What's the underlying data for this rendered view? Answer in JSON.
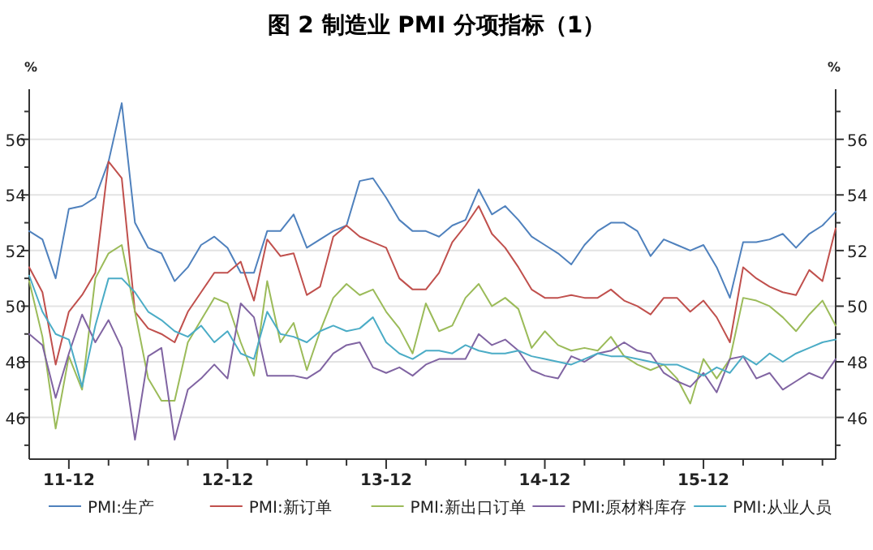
{
  "chart_data": {
    "type": "line",
    "title": "图 2  制造业 PMI 分项指标（1）",
    "ylabel": "%",
    "y2label": "%",
    "x": [
      "2011-09",
      "2011-10",
      "2011-11",
      "2011-12",
      "2012-01",
      "2012-02",
      "2012-03",
      "2012-04",
      "2012-05",
      "2012-06",
      "2012-07",
      "2012-08",
      "2012-09",
      "2012-10",
      "2012-11",
      "2012-12",
      "2013-01",
      "2013-02",
      "2013-03",
      "2013-04",
      "2013-05",
      "2013-06",
      "2013-07",
      "2013-08",
      "2013-09",
      "2013-10",
      "2013-11",
      "2013-12",
      "2014-01",
      "2014-02",
      "2014-03",
      "2014-04",
      "2014-05",
      "2014-06",
      "2014-07",
      "2014-08",
      "2014-09",
      "2014-10",
      "2014-11",
      "2014-12",
      "2015-01",
      "2015-02",
      "2015-03",
      "2015-04",
      "2015-05",
      "2015-06",
      "2015-07",
      "2015-08",
      "2015-09",
      "2015-10",
      "2015-11",
      "2015-12",
      "2016-01",
      "2016-02",
      "2016-03",
      "2016-04",
      "2016-05",
      "2016-06",
      "2016-07",
      "2016-08",
      "2016-09",
      "2016-10"
    ],
    "xlim": [
      "2011-09",
      "2016-10"
    ],
    "xticks": [
      {
        "value": "2011-12",
        "label": "11-12"
      },
      {
        "value": "2012-03",
        "label": null
      },
      {
        "value": "2012-06",
        "label": null
      },
      {
        "value": "2012-09",
        "label": null
      },
      {
        "value": "2012-12",
        "label": "12-12"
      },
      {
        "value": "2013-03",
        "label": null
      },
      {
        "value": "2013-06",
        "label": null
      },
      {
        "value": "2013-09",
        "label": null
      },
      {
        "value": "2013-12",
        "label": "13-12"
      },
      {
        "value": "2014-03",
        "label": null
      },
      {
        "value": "2014-06",
        "label": null
      },
      {
        "value": "2014-09",
        "label": null
      },
      {
        "value": "2014-12",
        "label": "14-12"
      },
      {
        "value": "2015-03",
        "label": null
      },
      {
        "value": "2015-06",
        "label": null
      },
      {
        "value": "2015-09",
        "label": null
      },
      {
        "value": "2015-12",
        "label": "15-12"
      },
      {
        "value": "2016-03",
        "label": null
      },
      {
        "value": "2016-06",
        "label": null
      },
      {
        "value": "2016-09",
        "label": null
      }
    ],
    "ylim": [
      44.5,
      57.8
    ],
    "yticks": [
      {
        "value": 45,
        "label": null
      },
      46,
      {
        "value": 47,
        "label": null
      },
      48,
      {
        "value": 49,
        "label": null
      },
      50,
      {
        "value": 51,
        "label": null
      },
      52,
      {
        "value": 53,
        "label": null
      },
      54,
      {
        "value": 55,
        "label": null
      },
      56,
      {
        "value": 57,
        "label": null
      }
    ],
    "y2lim": [
      44.5,
      57.8
    ],
    "y2ticks": [
      {
        "value": 45,
        "label": null
      },
      46,
      {
        "value": 47,
        "label": null
      },
      48,
      {
        "value": 49,
        "label": null
      },
      50,
      {
        "value": 51,
        "label": null
      },
      52,
      {
        "value": 53,
        "label": null
      },
      54,
      {
        "value": 55,
        "label": null
      },
      56,
      {
        "value": 57,
        "label": null
      }
    ],
    "grid": "y",
    "legend": "bottom",
    "series": [
      {
        "name": "PMI:生产",
        "color": "#4f81bd",
        "values": [
          52.7,
          52.4,
          51.0,
          53.5,
          53.6,
          53.9,
          55.2,
          57.3,
          53.0,
          52.1,
          51.9,
          50.9,
          51.4,
          52.2,
          52.5,
          52.1,
          51.2,
          51.2,
          52.7,
          52.7,
          53.3,
          52.1,
          52.4,
          52.7,
          52.9,
          54.5,
          54.6,
          53.9,
          53.1,
          52.7,
          52.7,
          52.5,
          52.9,
          53.1,
          54.2,
          53.3,
          53.6,
          53.1,
          52.5,
          52.2,
          51.9,
          51.5,
          52.2,
          52.7,
          53.0,
          53.0,
          52.7,
          51.8,
          52.4,
          52.2,
          52.0,
          52.2,
          51.4,
          50.3,
          52.3,
          52.3,
          52.4,
          52.6,
          52.1,
          52.6,
          52.9,
          53.4
        ]
      },
      {
        "name": "PMI:新订单",
        "color": "#c0504d",
        "values": [
          51.4,
          50.5,
          47.9,
          49.8,
          50.4,
          51.2,
          55.2,
          54.6,
          49.8,
          49.2,
          49.0,
          48.7,
          49.8,
          50.5,
          51.2,
          51.2,
          51.6,
          50.2,
          52.4,
          51.8,
          51.9,
          50.4,
          50.7,
          52.5,
          52.9,
          52.5,
          52.3,
          52.1,
          51.0,
          50.6,
          50.6,
          51.2,
          52.3,
          52.9,
          53.6,
          52.6,
          52.1,
          51.4,
          50.6,
          50.3,
          50.3,
          50.4,
          50.3,
          50.3,
          50.6,
          50.2,
          50.0,
          49.7,
          50.3,
          50.3,
          49.8,
          50.2,
          49.6,
          48.7,
          51.4,
          51.0,
          50.7,
          50.5,
          50.4,
          51.3,
          50.9,
          52.8
        ]
      },
      {
        "name": "PMI:新出口订单",
        "color": "#9bbb59",
        "values": [
          50.9,
          48.9,
          45.6,
          48.2,
          47.0,
          51.0,
          51.9,
          52.2,
          49.8,
          47.4,
          46.6,
          46.6,
          48.7,
          49.5,
          50.3,
          50.1,
          48.7,
          47.5,
          50.9,
          48.7,
          49.4,
          47.7,
          49.1,
          50.3,
          50.8,
          50.4,
          50.6,
          49.8,
          49.2,
          48.3,
          50.1,
          49.1,
          49.3,
          50.3,
          50.8,
          50.0,
          50.3,
          49.9,
          48.5,
          49.1,
          48.6,
          48.4,
          48.5,
          48.4,
          48.9,
          48.2,
          47.9,
          47.7,
          47.9,
          47.4,
          46.5,
          48.1,
          47.4,
          48.1,
          50.3,
          50.2,
          50.0,
          49.6,
          49.1,
          49.7,
          50.2,
          49.3
        ]
      },
      {
        "name": "PMI:原材料库存",
        "color": "#8064a2",
        "values": [
          49.0,
          48.6,
          46.7,
          48.3,
          49.7,
          48.7,
          49.5,
          48.5,
          45.2,
          48.2,
          48.5,
          45.2,
          47.0,
          47.4,
          47.9,
          47.4,
          50.1,
          49.6,
          47.5,
          47.5,
          47.5,
          47.4,
          47.7,
          48.3,
          48.6,
          48.7,
          47.8,
          47.6,
          47.8,
          47.5,
          47.9,
          48.1,
          48.1,
          48.1,
          49.0,
          48.6,
          48.8,
          48.4,
          47.7,
          47.5,
          47.4,
          48.2,
          48.0,
          48.3,
          48.4,
          48.7,
          48.4,
          48.3,
          47.6,
          47.3,
          47.1,
          47.6,
          46.9,
          48.1,
          48.2,
          47.4,
          47.6,
          47.0,
          47.3,
          47.6,
          47.4,
          48.1
        ]
      },
      {
        "name": "PMI:从业人员",
        "color": "#4bacc6",
        "values": [
          51.1,
          49.8,
          49.0,
          48.8,
          47.1,
          49.3,
          51.0,
          51.0,
          50.5,
          49.8,
          49.5,
          49.1,
          48.9,
          49.3,
          48.7,
          49.1,
          48.3,
          48.1,
          49.8,
          49.0,
          48.9,
          48.7,
          49.1,
          49.3,
          49.1,
          49.2,
          49.6,
          48.7,
          48.3,
          48.1,
          48.4,
          48.4,
          48.3,
          48.6,
          48.4,
          48.3,
          48.3,
          48.4,
          48.2,
          48.1,
          48.0,
          47.9,
          48.1,
          48.3,
          48.2,
          48.2,
          48.1,
          48.0,
          47.9,
          47.9,
          47.7,
          47.5,
          47.8,
          47.6,
          48.2,
          47.9,
          48.3,
          48.0,
          48.3,
          48.5,
          48.7,
          48.8
        ]
      }
    ]
  }
}
